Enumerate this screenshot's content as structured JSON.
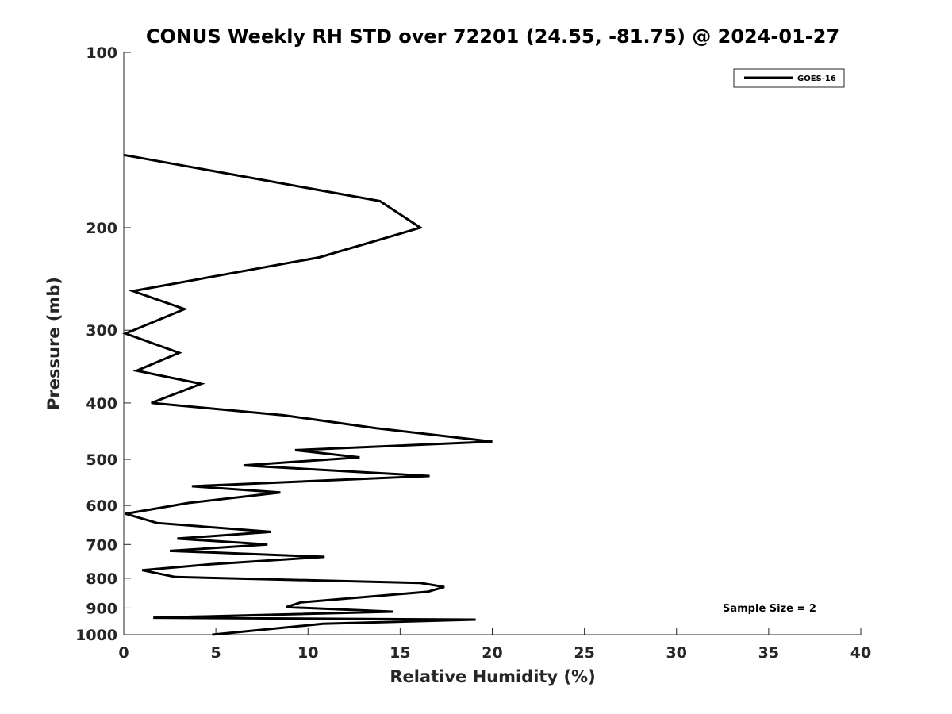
{
  "chart_data": {
    "type": "line",
    "title": "CONUS Weekly RH STD over 72201 (24.55, -81.75) @ 2024-01-27",
    "xlabel": "Relative Humidity (%)",
    "ylabel": "Pressure (mb)",
    "xlim": [
      0,
      40
    ],
    "ylim": [
      100,
      1000
    ],
    "y_scale": "log",
    "y_reversed": true,
    "grid": false,
    "legend_position": "top-right",
    "x_ticks": [
      0,
      5,
      10,
      15,
      20,
      25,
      30,
      35,
      40
    ],
    "x_tick_labels": [
      "0",
      "5",
      "10",
      "15",
      "20",
      "25",
      "30",
      "35",
      "40"
    ],
    "y_ticks": [
      100,
      200,
      300,
      400,
      500,
      600,
      700,
      800,
      900,
      1000
    ],
    "y_tick_labels": [
      "100",
      "200",
      "300",
      "400",
      "500",
      "600",
      "700",
      "800",
      "900",
      "1000"
    ],
    "series": [
      {
        "name": "GOES-16",
        "color": "#000000",
        "points": [
          [
            0.0,
            150
          ],
          [
            13.9,
            180
          ],
          [
            16.1,
            200
          ],
          [
            10.6,
            225
          ],
          [
            0.5,
            257
          ],
          [
            3.3,
            276
          ],
          [
            0.1,
            304
          ],
          [
            3.0,
            328
          ],
          [
            0.7,
            352
          ],
          [
            4.2,
            371
          ],
          [
            1.5,
            400
          ],
          [
            8.7,
            420
          ],
          [
            13.7,
            442
          ],
          [
            20.0,
            466
          ],
          [
            9.3,
            482
          ],
          [
            12.8,
            496
          ],
          [
            6.5,
            512
          ],
          [
            16.6,
            534
          ],
          [
            3.7,
            556
          ],
          [
            8.5,
            570
          ],
          [
            3.5,
            594
          ],
          [
            0.1,
            620
          ],
          [
            1.8,
            643
          ],
          [
            8.0,
            666
          ],
          [
            2.9,
            684
          ],
          [
            7.8,
            700
          ],
          [
            2.5,
            718
          ],
          [
            10.9,
            735
          ],
          [
            4.7,
            757
          ],
          [
            1.0,
            775
          ],
          [
            2.8,
            796
          ],
          [
            16.1,
            815
          ],
          [
            17.4,
            828
          ],
          [
            16.5,
            844
          ],
          [
            9.6,
            880
          ],
          [
            8.8,
            897
          ],
          [
            14.6,
            913
          ],
          [
            1.6,
            935
          ],
          [
            19.1,
            942
          ],
          [
            10.8,
            958
          ],
          [
            4.8,
            1000
          ]
        ]
      }
    ],
    "annotations": [
      "Sample Size = 2"
    ]
  }
}
